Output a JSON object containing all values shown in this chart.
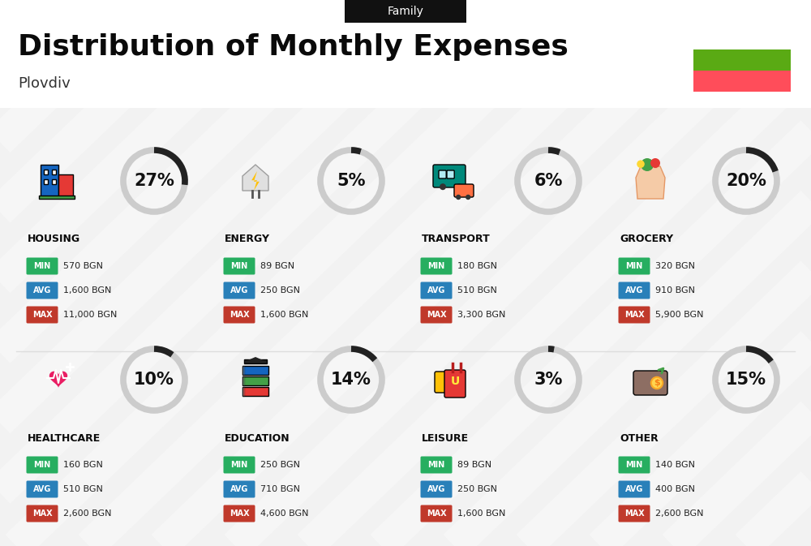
{
  "title": "Distribution of Monthly Expenses",
  "subtitle": "Family",
  "city": "Plovdiv",
  "bg_color": "#f2f2f2",
  "categories": [
    {
      "name": "HOUSING",
      "pct": 27,
      "min": "570 BGN",
      "avg": "1,600 BGN",
      "max": "11,000 BGN",
      "row": 0,
      "col": 0
    },
    {
      "name": "ENERGY",
      "pct": 5,
      "min": "89 BGN",
      "avg": "250 BGN",
      "max": "1,600 BGN",
      "row": 0,
      "col": 1
    },
    {
      "name": "TRANSPORT",
      "pct": 6,
      "min": "180 BGN",
      "avg": "510 BGN",
      "max": "3,300 BGN",
      "row": 0,
      "col": 2
    },
    {
      "name": "GROCERY",
      "pct": 20,
      "min": "320 BGN",
      "avg": "910 BGN",
      "max": "5,900 BGN",
      "row": 0,
      "col": 3
    },
    {
      "name": "HEALTHCARE",
      "pct": 10,
      "min": "160 BGN",
      "avg": "510 BGN",
      "max": "2,600 BGN",
      "row": 1,
      "col": 0
    },
    {
      "name": "EDUCATION",
      "pct": 14,
      "min": "250 BGN",
      "avg": "710 BGN",
      "max": "4,600 BGN",
      "row": 1,
      "col": 1
    },
    {
      "name": "LEISURE",
      "pct": 3,
      "min": "89 BGN",
      "avg": "250 BGN",
      "max": "1,600 BGN",
      "row": 1,
      "col": 2
    },
    {
      "name": "OTHER",
      "pct": 15,
      "min": "140 BGN",
      "avg": "400 BGN",
      "max": "2,600 BGN",
      "row": 1,
      "col": 3
    }
  ],
  "min_color": "#27ae60",
  "avg_color": "#2980b9",
  "max_color": "#c0392b",
  "arc_fg_color": "#222222",
  "arc_bg_color": "#cccccc",
  "flag_green": "#5aaa14",
  "flag_red": "#ff4d5a",
  "title_fontsize": 26,
  "subtitle_fontsize": 10,
  "city_fontsize": 13,
  "pct_fontsize": 15,
  "cat_fontsize": 9,
  "badge_fontsize": 7,
  "val_fontsize": 8
}
